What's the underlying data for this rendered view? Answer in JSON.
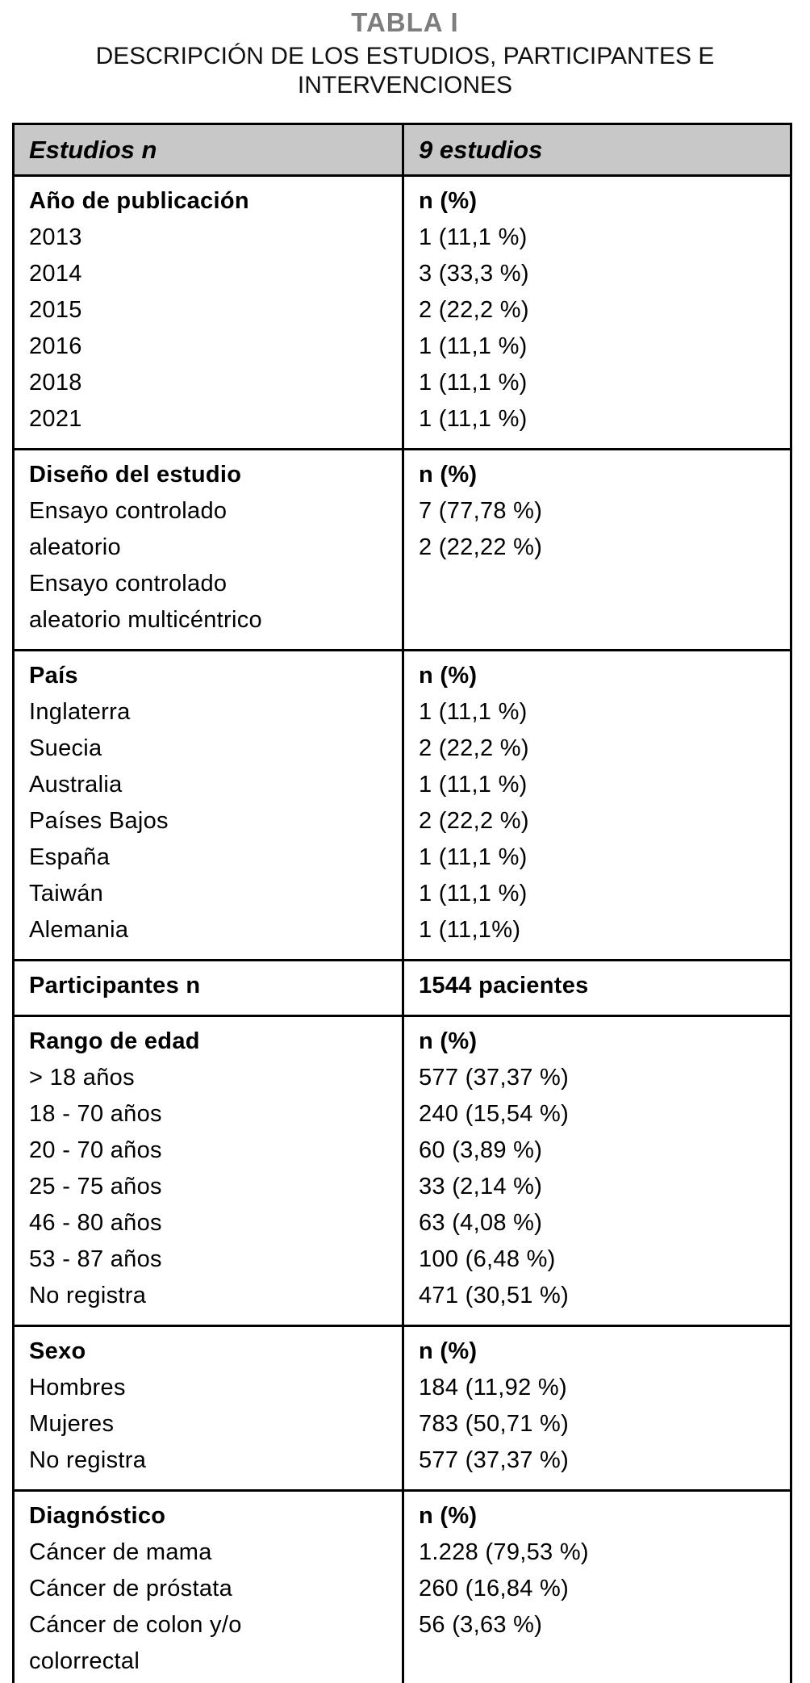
{
  "title": "TABLA I",
  "subtitle": "DESCRIPCIÓN DE LOS ESTUDIOS, PARTICIPANTES E INTERVENCIONES",
  "colors": {
    "header_bg": "#c8c8c8",
    "title_gray": "#7d7d7d",
    "border": "#000000"
  },
  "table": {
    "header": {
      "left": "Estudios n",
      "right": "9 estudios"
    },
    "sections": [
      {
        "name": "ano-de-publicacion",
        "lines": [
          {
            "l": "Año de publicación",
            "r": "n (%)",
            "b": true
          },
          {
            "l": "2013",
            "r": "1 (11,1 %)"
          },
          {
            "l": "2014",
            "r": "3 (33,3 %)"
          },
          {
            "l": "2015",
            "r": "2 (22,2 %)"
          },
          {
            "l": "2016",
            "r": "1 (11,1 %)"
          },
          {
            "l": "2018",
            "r": "1 (11,1 %)"
          },
          {
            "l": "2021",
            "r": "1 (11,1 %)"
          }
        ]
      },
      {
        "name": "diseno-del-estudio",
        "lines": [
          {
            "l": "Diseño del estudio",
            "r": "n (%)",
            "b": true
          },
          {
            "l": "Ensayo controlado",
            "r": "7 (77,78 %)"
          },
          {
            "l": "aleatorio",
            "r": "2 (22,22 %)"
          },
          {
            "l": "Ensayo controlado",
            "r": ""
          },
          {
            "l": "aleatorio multicéntrico",
            "r": ""
          }
        ]
      },
      {
        "name": "pais",
        "lines": [
          {
            "l": "País",
            "r": "n (%)",
            "b": true
          },
          {
            "l": "Inglaterra",
            "r": "1 (11,1 %)"
          },
          {
            "l": "Suecia",
            "r": "2 (22,2 %)"
          },
          {
            "l": "Australia",
            "r": "1 (11,1 %)"
          },
          {
            "l": "Países Bajos",
            "r": "2 (22,2 %)"
          },
          {
            "l": "España",
            "r": "1 (11,1 %)"
          },
          {
            "l": "Taiwán",
            "r": "1 (11,1 %)"
          },
          {
            "l": "Alemania",
            "r": "1 (11,1%)"
          }
        ]
      },
      {
        "name": "participantes",
        "lines": [
          {
            "l": "Participantes n",
            "r": "1544 pacientes",
            "b": true
          }
        ]
      },
      {
        "name": "rango-de-edad",
        "lines": [
          {
            "l": "Rango de edad",
            "r": "n (%)",
            "b": true
          },
          {
            "l": "> 18 años",
            "r": "577 (37,37 %)"
          },
          {
            "l": "18 - 70 años",
            "r": "240 (15,54 %)"
          },
          {
            "l": "20 - 70 años",
            "r": "60 (3,89 %)"
          },
          {
            "l": "25 - 75 años",
            "r": "33 (2,14 %)"
          },
          {
            "l": "46 - 80 años",
            "r": "63 (4,08 %)"
          },
          {
            "l": "53 - 87 años",
            "r": "100 (6,48 %)"
          },
          {
            "l": "No registra",
            "r": "471 (30,51 %)"
          }
        ]
      },
      {
        "name": "sexo",
        "lines": [
          {
            "l": "Sexo",
            "r": "n (%)",
            "b": true
          },
          {
            "l": "Hombres",
            "r": "184 (11,92 %)"
          },
          {
            "l": "Mujeres",
            "r": "783 (50,71 %)"
          },
          {
            "l": "No registra",
            "r": "577 (37,37 %)"
          }
        ]
      },
      {
        "name": "diagnostico",
        "lines": [
          {
            "l": "Diagnóstico",
            "r": "n (%)",
            "b": true
          },
          {
            "l": "Cáncer de mama",
            "r": "1.228 (79,53 %)"
          },
          {
            "l": "Cáncer de próstata",
            "r": "260 (16,84 %)"
          },
          {
            "l": "Cáncer de colon y/o",
            "r": "56 (3,63 %)"
          },
          {
            "l": "colorrectal",
            "r": ""
          }
        ]
      }
    ]
  }
}
